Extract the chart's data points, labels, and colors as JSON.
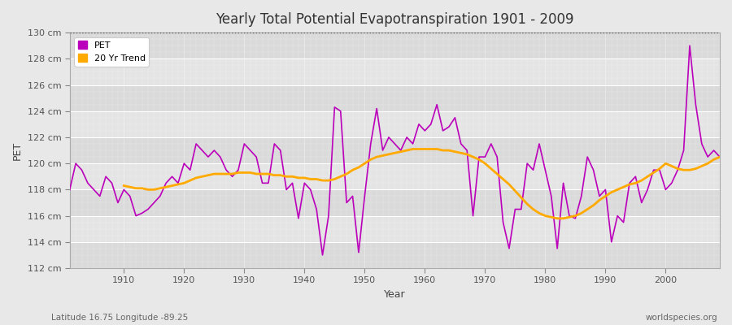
{
  "title": "Yearly Total Potential Evapotranspiration 1901 - 2009",
  "xlabel": "Year",
  "ylabel": "PET",
  "footnote_left": "Latitude 16.75 Longitude -89.25",
  "footnote_right": "worldspecies.org",
  "ylim": [
    112,
    130
  ],
  "ytick_labels": [
    "112 cm",
    "114 cm",
    "116 cm",
    "118 cm",
    "120 cm",
    "122 cm",
    "124 cm",
    "126 cm",
    "128 cm",
    "130 cm"
  ],
  "ytick_values": [
    112,
    114,
    116,
    118,
    120,
    122,
    124,
    126,
    128,
    130
  ],
  "xtick_values": [
    1910,
    1920,
    1930,
    1940,
    1950,
    1960,
    1970,
    1980,
    1990,
    2000
  ],
  "pet_color": "#bb00bb",
  "trend_color": "#ffaa00",
  "fig_bg_color": "#e8e8e8",
  "plot_bg_color": "#e2e2e2",
  "grid_color": "#ffffff",
  "pet_years": [
    1901,
    1902,
    1903,
    1904,
    1905,
    1906,
    1907,
    1908,
    1909,
    1910,
    1911,
    1912,
    1913,
    1914,
    1915,
    1916,
    1917,
    1918,
    1919,
    1920,
    1921,
    1922,
    1923,
    1924,
    1925,
    1926,
    1927,
    1928,
    1929,
    1930,
    1931,
    1932,
    1933,
    1934,
    1935,
    1936,
    1937,
    1938,
    1939,
    1940,
    1941,
    1942,
    1943,
    1944,
    1945,
    1946,
    1947,
    1948,
    1949,
    1950,
    1951,
    1952,
    1953,
    1954,
    1955,
    1956,
    1957,
    1958,
    1959,
    1960,
    1961,
    1962,
    1963,
    1964,
    1965,
    1966,
    1967,
    1968,
    1969,
    1970,
    1971,
    1972,
    1973,
    1974,
    1975,
    1976,
    1977,
    1978,
    1979,
    1980,
    1981,
    1982,
    1983,
    1984,
    1985,
    1986,
    1987,
    1988,
    1989,
    1990,
    1991,
    1992,
    1993,
    1994,
    1995,
    1996,
    1997,
    1998,
    1999,
    2000,
    2001,
    2002,
    2003,
    2004,
    2005,
    2006,
    2007,
    2008,
    2009
  ],
  "pet_values": [
    118.0,
    120.0,
    119.5,
    118.5,
    118.0,
    117.5,
    119.0,
    118.5,
    117.0,
    118.0,
    117.5,
    116.0,
    116.2,
    116.5,
    117.0,
    117.5,
    118.5,
    119.0,
    118.5,
    120.0,
    119.5,
    121.5,
    121.0,
    120.5,
    121.0,
    120.5,
    119.5,
    119.0,
    119.5,
    121.5,
    121.0,
    120.5,
    118.5,
    118.5,
    121.5,
    121.0,
    118.0,
    118.5,
    115.8,
    118.5,
    118.0,
    116.5,
    113.0,
    116.0,
    124.3,
    124.0,
    117.0,
    117.5,
    113.2,
    117.5,
    121.5,
    124.2,
    121.0,
    122.0,
    121.5,
    121.0,
    122.0,
    121.5,
    123.0,
    122.5,
    123.0,
    124.5,
    122.5,
    122.8,
    123.5,
    121.5,
    121.0,
    116.0,
    120.5,
    120.5,
    121.5,
    120.5,
    115.5,
    113.5,
    116.5,
    116.5,
    120.0,
    119.5,
    121.5,
    119.5,
    117.5,
    113.5,
    118.5,
    116.0,
    115.8,
    117.5,
    120.5,
    119.5,
    117.5,
    118.0,
    114.0,
    116.0,
    115.5,
    118.5,
    119.0,
    117.0,
    118.0,
    119.5,
    119.5,
    118.0,
    118.5,
    119.5,
    121.0,
    129.0,
    124.5,
    121.5,
    120.5,
    121.0,
    120.5
  ],
  "trend_years": [
    1910,
    1911,
    1912,
    1913,
    1914,
    1915,
    1916,
    1917,
    1918,
    1919,
    1920,
    1921,
    1922,
    1923,
    1924,
    1925,
    1926,
    1927,
    1928,
    1929,
    1930,
    1931,
    1932,
    1933,
    1934,
    1935,
    1936,
    1937,
    1938,
    1939,
    1940,
    1941,
    1942,
    1943,
    1944,
    1945,
    1946,
    1947,
    1948,
    1949,
    1950,
    1951,
    1952,
    1953,
    1954,
    1955,
    1956,
    1957,
    1958,
    1959,
    1960,
    1961,
    1962,
    1963,
    1964,
    1965,
    1966,
    1967,
    1968,
    1969,
    1970,
    1971,
    1972,
    1973,
    1974,
    1975,
    1976,
    1977,
    1978,
    1979,
    1980,
    1981,
    1982,
    1983,
    1984,
    1985,
    1986,
    1987,
    1988,
    1989,
    1990,
    1991,
    1992,
    1993,
    1994,
    1995,
    1996,
    1997,
    1998,
    1999,
    2000,
    2001,
    2002,
    2003,
    2004,
    2005,
    2006,
    2007,
    2008,
    2009
  ],
  "trend_values": [
    118.3,
    118.2,
    118.1,
    118.1,
    118.0,
    118.0,
    118.1,
    118.2,
    118.3,
    118.4,
    118.5,
    118.7,
    118.9,
    119.0,
    119.1,
    119.2,
    119.2,
    119.2,
    119.2,
    119.3,
    119.3,
    119.3,
    119.2,
    119.2,
    119.2,
    119.1,
    119.1,
    119.0,
    119.0,
    118.9,
    118.9,
    118.8,
    118.8,
    118.7,
    118.7,
    118.8,
    119.0,
    119.2,
    119.5,
    119.7,
    120.0,
    120.3,
    120.5,
    120.6,
    120.7,
    120.8,
    120.9,
    121.0,
    121.1,
    121.1,
    121.1,
    121.1,
    121.1,
    121.0,
    121.0,
    120.9,
    120.8,
    120.7,
    120.5,
    120.3,
    120.0,
    119.6,
    119.2,
    118.8,
    118.4,
    117.9,
    117.4,
    116.9,
    116.5,
    116.2,
    116.0,
    115.9,
    115.8,
    115.8,
    115.9,
    116.0,
    116.2,
    116.5,
    116.8,
    117.2,
    117.5,
    117.8,
    118.0,
    118.2,
    118.4,
    118.5,
    118.7,
    119.0,
    119.3,
    119.6,
    120.0,
    119.8,
    119.6,
    119.5,
    119.5,
    119.6,
    119.8,
    120.0,
    120.3,
    120.5
  ]
}
